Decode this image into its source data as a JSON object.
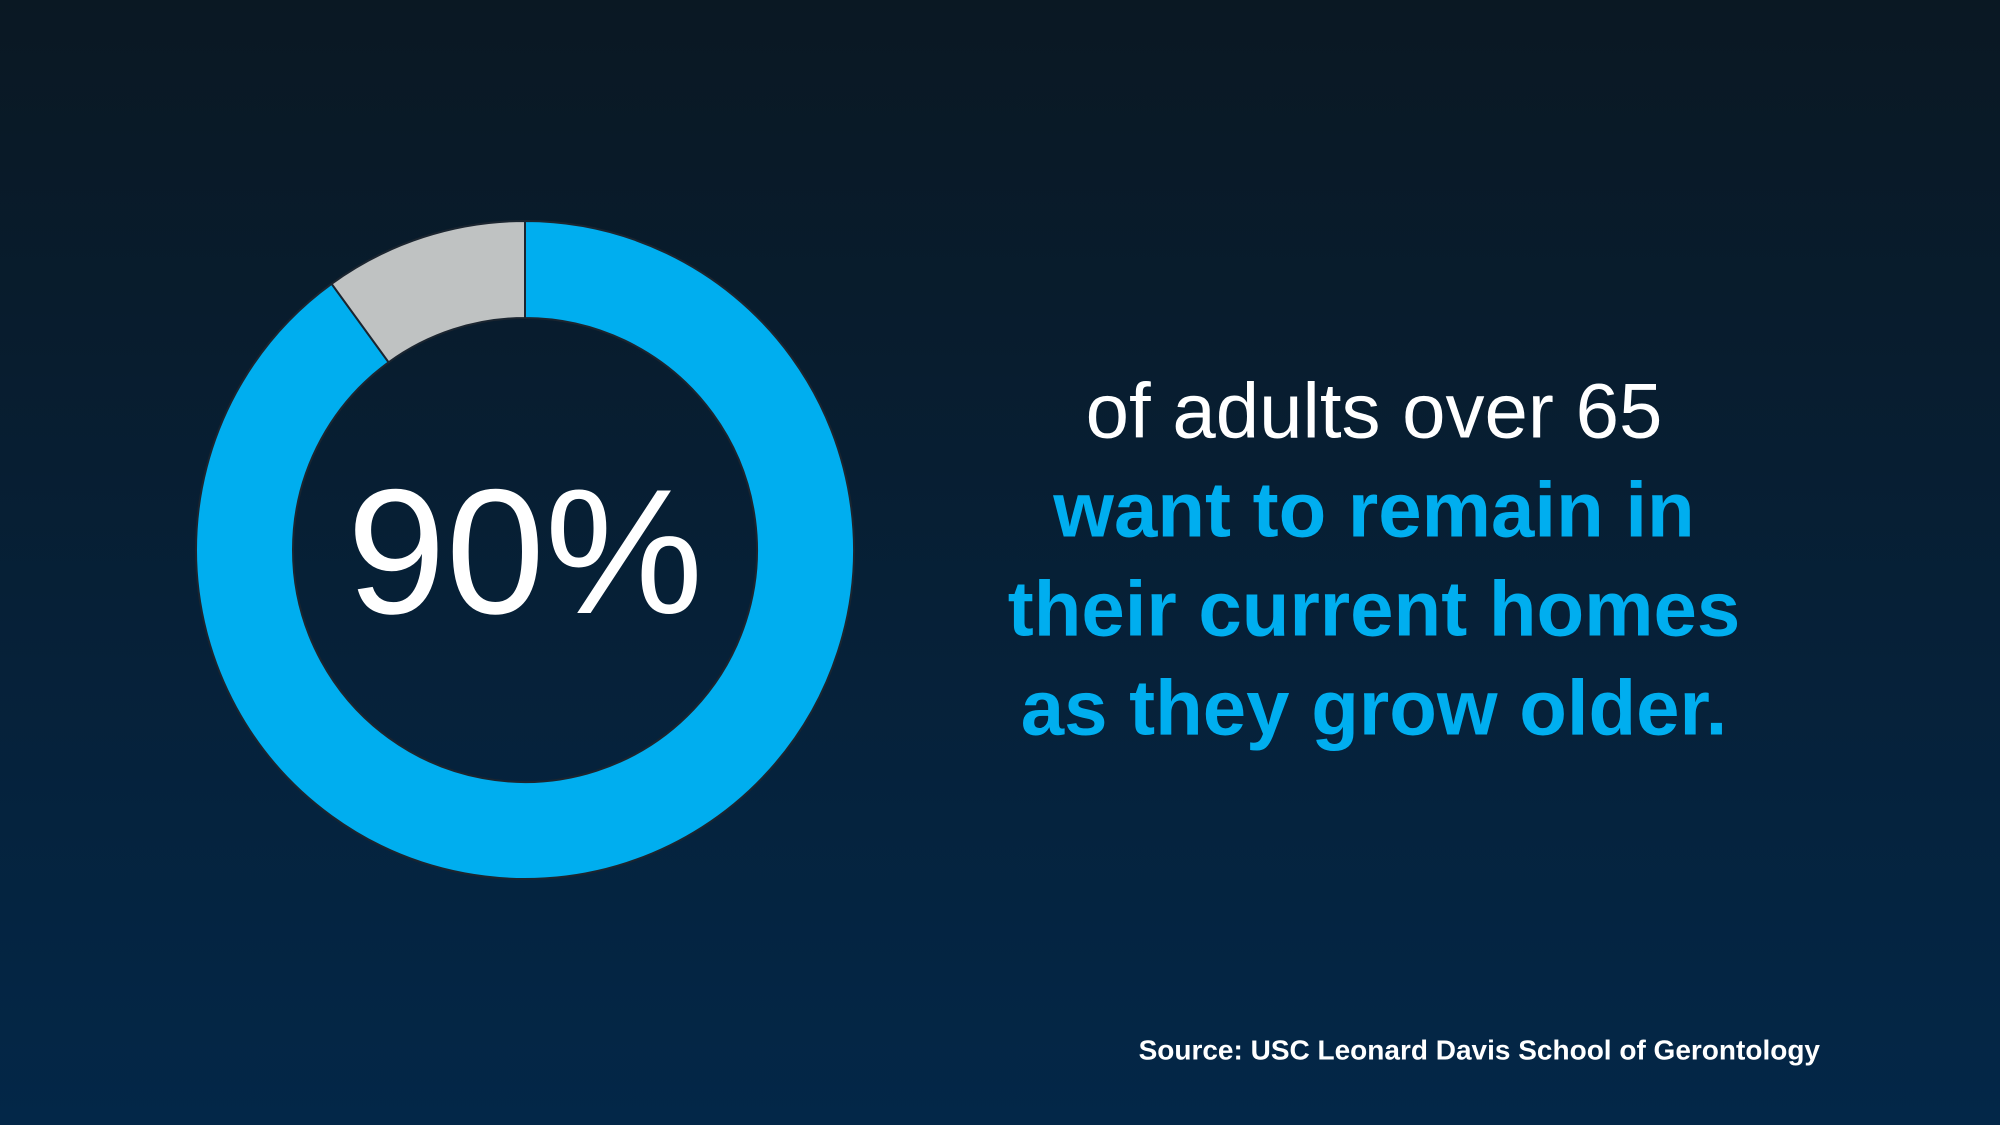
{
  "chart_data": {
    "type": "pie",
    "donut": true,
    "values": [
      90,
      10
    ],
    "value_labels": [
      "90%",
      null
    ],
    "colors": [
      "#00aeef",
      "#bfc2c2"
    ],
    "statement": [
      "of adults over 65"
    ],
    "highlight": [
      "want to remain in",
      "their current homes",
      "as they grow older."
    ],
    "highlight_color": "#00aeef",
    "source": "Source: USC Leonard Davis School of Gerontology"
  }
}
